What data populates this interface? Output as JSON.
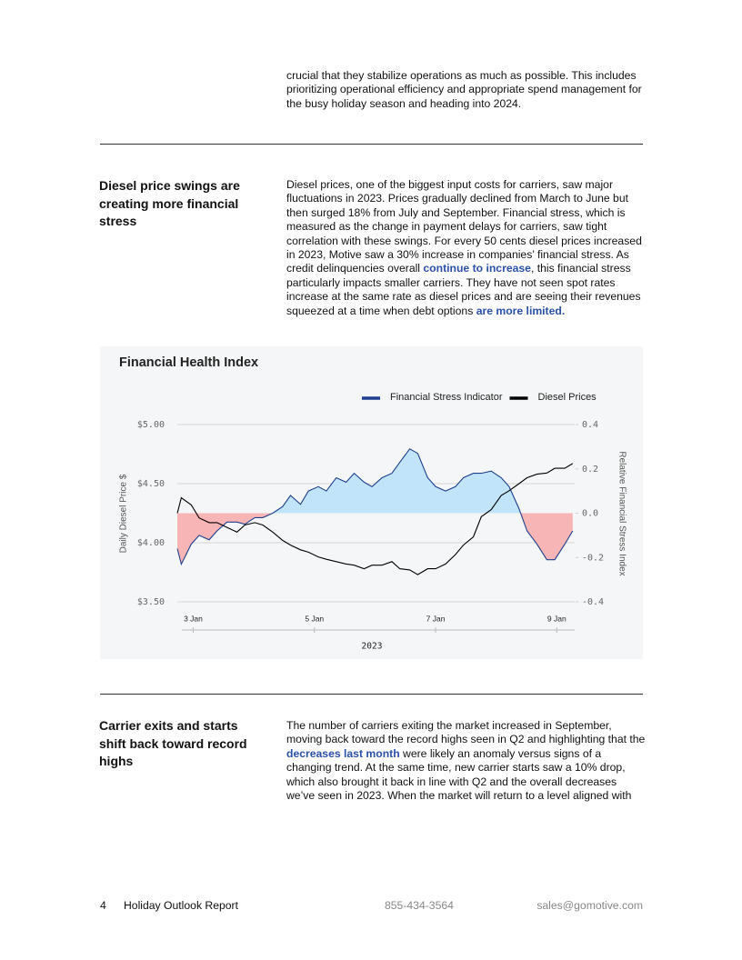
{
  "intro": {
    "text": "crucial that they stabilize operations as much as possible. This includes prioritizing operational efficiency and appropriate spend management for the busy holiday season and heading into 2024."
  },
  "sections": [
    {
      "heading": "Diesel price swings are creating more financial stress",
      "body": [
        {
          "text": "Diesel prices, one of the biggest input costs for carriers, saw major fluctuations in 2023. Prices gradually declined from March to June but then surged 18% from July and September. Financial stress, which is measured as the change in payment delays for carriers, saw tight correlation with these swings. For every 50 cents diesel prices increased in 2023, Motive saw a 30% increase in companies’ financial stress. As credit delinquencies overall "
        },
        {
          "text": "continue to increase",
          "link": true
        },
        {
          "text": ", this financial stress particularly impacts smaller carriers. They have not seen spot rates increase at the same rate as diesel prices and are seeing their revenues squeezed at a time when debt options "
        },
        {
          "text": "are more limited.",
          "link": true
        }
      ]
    },
    {
      "heading": "Carrier exits and starts shift back toward record highs",
      "body": [
        {
          "text": "The number of carriers exiting the market increased in September, moving back toward the record highs seen in Q2 and highlighting that the "
        },
        {
          "text": "decreases last month",
          "link": true
        },
        {
          "text": " were likely an anomaly versus signs of a changing trend. At the same time, new carrier starts saw a 10% drop, which also brought it back in line with Q2 and the overall decreases we’ve seen in 2023. When the market will return to a level aligned with"
        }
      ]
    }
  ],
  "chart_data": {
    "type": "line",
    "title": "Financial Health Index",
    "x_label": "2023",
    "y_label": "Daily Diesel Price $",
    "y2_label": "Relative Financial Stress Index",
    "x": [
      -8,
      -6,
      -1,
      3,
      8,
      12,
      17,
      22,
      26,
      31,
      35,
      40,
      45,
      49,
      54,
      58,
      63,
      67,
      72,
      77,
      81,
      86,
      90,
      95,
      100,
      104,
      109,
      113,
      118,
      122,
      127,
      132,
      136,
      141,
      145,
      150,
      155,
      159,
      164,
      168,
      173,
      178,
      182,
      187,
      191
    ],
    "xlim": [
      -8,
      192
    ],
    "xticks": [
      {
        "value": 0,
        "label": "3 Jan"
      },
      {
        "value": 61,
        "label": "5 Jan"
      },
      {
        "value": 122,
        "label": "7 Jan"
      },
      {
        "value": 183,
        "label": "9 Jan"
      }
    ],
    "ylim": [
      3.5,
      5
    ],
    "yticks": [
      {
        "value": 3.5,
        "label": "$3.50"
      },
      {
        "value": 4,
        "label": "$4.00"
      },
      {
        "value": 4.5,
        "label": "$4.50"
      },
      {
        "value": 5,
        "label": "$5.00"
      }
    ],
    "y2lim": [
      -0.4,
      0.4
    ],
    "y2ticks": [
      -0.4,
      -0.2,
      {
        "value": 0,
        "label": "0.0"
      },
      0.2,
      0.4
    ],
    "grid": true,
    "series": [
      {
        "name": "Financial Stress Indicator",
        "color": "#1d3f8f",
        "axis": "y2",
        "fill_above": "#c2e4fb",
        "fill_below": "#f7b6b5",
        "values": [
          -0.16,
          -0.23,
          -0.14,
          -0.1,
          -0.12,
          -0.08,
          -0.04,
          -0.04,
          -0.05,
          -0.02,
          -0.02,
          0.0,
          0.03,
          0.08,
          0.04,
          0.1,
          0.12,
          0.1,
          0.16,
          0.14,
          0.18,
          0.14,
          0.12,
          0.16,
          0.18,
          0.23,
          0.29,
          0.27,
          0.16,
          0.12,
          0.1,
          0.12,
          0.16,
          0.18,
          0.18,
          0.19,
          0.16,
          0.12,
          0.02,
          -0.08,
          -0.14,
          -0.21,
          -0.21,
          -0.14,
          -0.08
        ]
      },
      {
        "name": "Diesel Prices",
        "color": "#000000",
        "axis": "y",
        "values": [
          4.25,
          4.38,
          4.32,
          4.21,
          4.17,
          4.17,
          4.13,
          4.09,
          4.15,
          4.17,
          4.15,
          4.09,
          4.02,
          3.98,
          3.94,
          3.92,
          3.88,
          3.86,
          3.84,
          3.82,
          3.81,
          3.78,
          3.81,
          3.81,
          3.84,
          3.78,
          3.77,
          3.73,
          3.78,
          3.78,
          3.82,
          3.9,
          3.98,
          4.05,
          4.22,
          4.28,
          4.4,
          4.44,
          4.5,
          4.55,
          4.58,
          4.59,
          4.63,
          4.63,
          4.67
        ]
      }
    ]
  },
  "footer": {
    "page": "4",
    "report": "Holiday Outlook Report",
    "phone": "855-434-3564",
    "email": "sales@gomotive.com"
  }
}
